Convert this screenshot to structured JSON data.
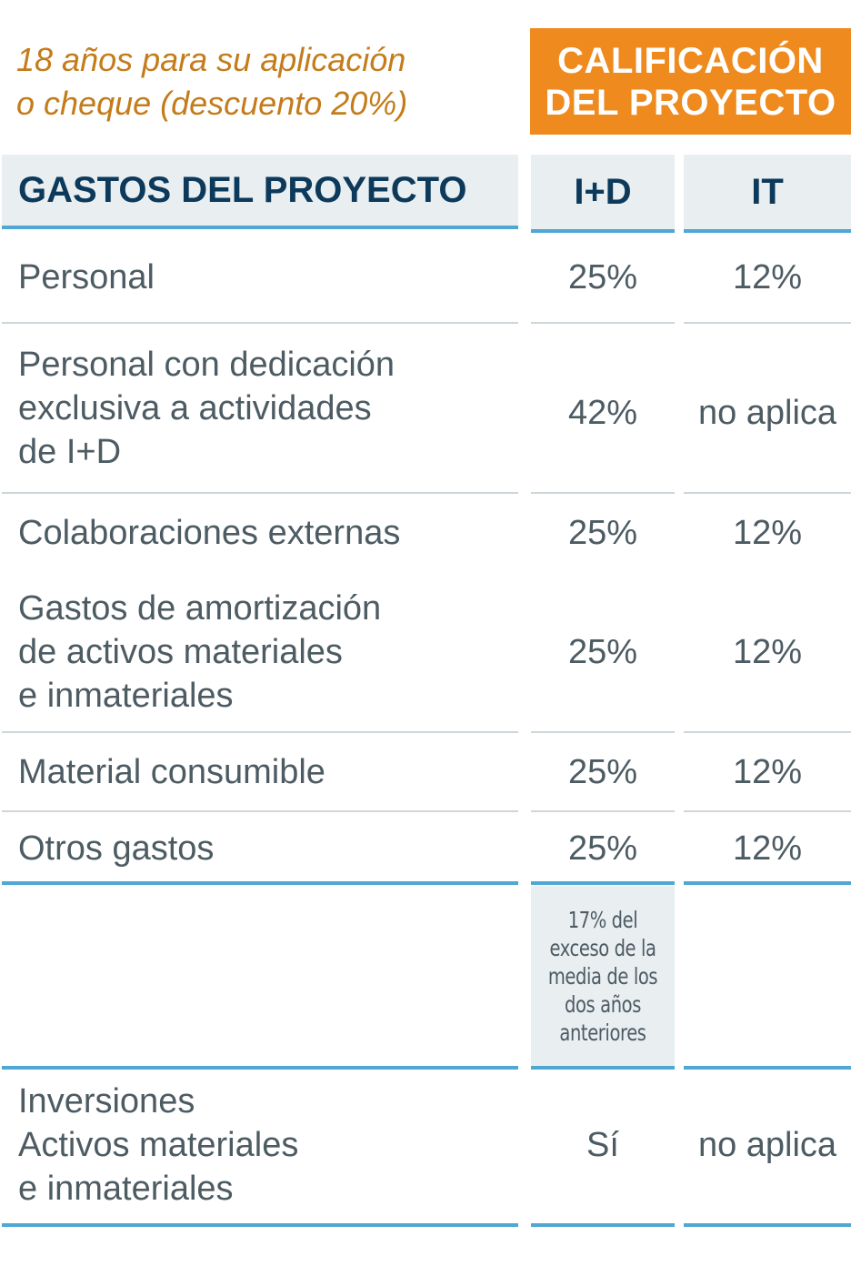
{
  "header": {
    "subtitle": "18 años para su aplicación\no cheque (descuento 20%)",
    "badge": "CALIFICACIÓN\nDEL PROYECTO"
  },
  "table": {
    "columns": [
      "GASTOS DEL PROYECTO",
      "I+D",
      "IT"
    ],
    "rows": [
      {
        "label": "Personal",
        "id": "25%",
        "it": "12%"
      },
      {
        "label": "Personal con dedicación\nexclusiva a actividades\nde I+D",
        "id": "42%",
        "it": "no aplica"
      },
      {
        "label": "Colaboraciones externas",
        "id": "25%",
        "it": "12%"
      },
      {
        "label": "Gastos de amortización\nde activos materiales\ne inmateriales",
        "id": "25%",
        "it": "12%"
      },
      {
        "label": "Material consumible",
        "id": "25%",
        "it": "12%"
      },
      {
        "label": "Otros gastos",
        "id": "25%",
        "it": "12%"
      }
    ],
    "excess_note": "17% del\nexceso de la\nmedia de los\ndos años\nanteriores",
    "investment_row": {
      "label": "Inversiones\nActivos materiales\ne inmateriales",
      "id": "Sí",
      "it": "no aplica"
    }
  },
  "colors": {
    "accent_orange": "#ef8a1e",
    "subtitle_orange": "#c47c1b",
    "header_navy": "#0d3a5b",
    "rule_blue": "#4fa7d4",
    "header_bg": "#e9eef1"
  }
}
